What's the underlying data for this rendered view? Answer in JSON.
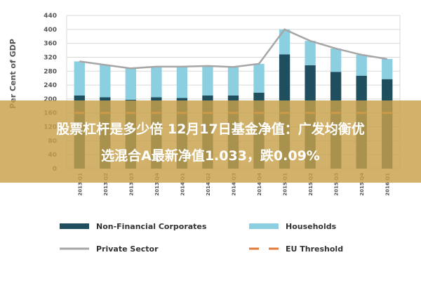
{
  "chart_data": {
    "type": "bar",
    "ylabel": "Per Cent of GDP",
    "ylim": [
      0,
      440
    ],
    "yticks": [
      0,
      40,
      80,
      120,
      160,
      200,
      240,
      280,
      320,
      360,
      400,
      440
    ],
    "stacked": true,
    "grid": true,
    "legend_position": "bottom",
    "categories": [
      "2013 Q1",
      "2013 Q2",
      "2013 Q3",
      "2013 Q4",
      "2014 Q1",
      "2014 Q2",
      "2014 Q3",
      "2014 Q4",
      "2015 Q1",
      "2015 Q2",
      "2015 Q3",
      "2015 Q4",
      "2016 Q1"
    ],
    "series": [
      {
        "name": "Non-Financial Corporates",
        "kind": "bar",
        "color": "#1f4e5f",
        "values": [
          210,
          205,
          198,
          205,
          203,
          210,
          210,
          218,
          328,
          297,
          278,
          267,
          257
        ]
      },
      {
        "name": "Households",
        "kind": "bar",
        "color": "#8ccfe0",
        "values": [
          98,
          93,
          90,
          88,
          90,
          85,
          82,
          83,
          72,
          70,
          67,
          60,
          58
        ]
      },
      {
        "name": "Private Sector",
        "kind": "line",
        "color": "#a6a6a6",
        "values": [
          308,
          298,
          288,
          293,
          293,
          295,
          292,
          301,
          400,
          367,
          345,
          327,
          315
        ]
      },
      {
        "name": "EU Threshold",
        "kind": "dashed-line",
        "color": "#e07b39",
        "values": [
          160,
          160,
          160,
          160,
          160,
          160,
          160,
          160,
          160,
          160,
          160,
          160,
          160
        ]
      }
    ]
  },
  "banner": {
    "line1": "股票杠杆是多少倍 12月17日基金净值：广发均衡优",
    "line2": "选混合A最新净值1.033，跌0.09%",
    "background": "#c8a14a"
  }
}
